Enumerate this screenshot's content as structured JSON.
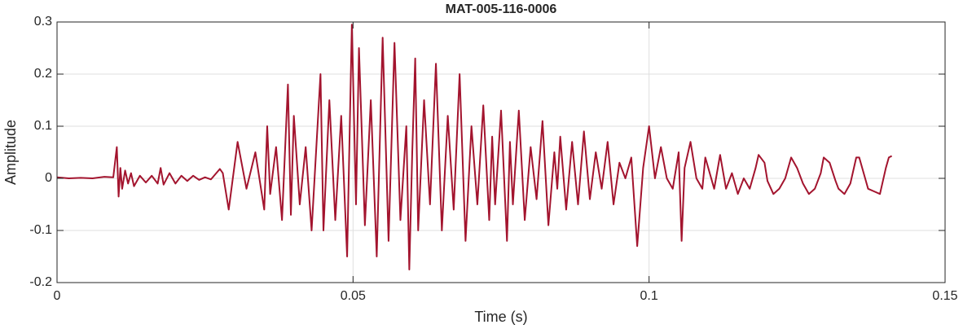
{
  "chart_data": {
    "type": "line",
    "title": "MAT-005-116-0006",
    "x_label": "Time (s)",
    "y_label": "Amplitude",
    "xlim": [
      0,
      0.15
    ],
    "ylim": [
      -0.2,
      0.3
    ],
    "xticks": [
      0,
      0.05,
      0.1,
      0.15
    ],
    "yticks": [
      0.3,
      0.2,
      0.1,
      0,
      -0.1,
      -0.2
    ],
    "grid": true,
    "series": [
      {
        "color": "#a3142e",
        "x": [
          0,
          0.002,
          0.004,
          0.006,
          0.008,
          0.0095,
          0.0101,
          0.0104,
          0.0107,
          0.011,
          0.0115,
          0.012,
          0.0125,
          0.013,
          0.014,
          0.015,
          0.016,
          0.017,
          0.0175,
          0.018,
          0.019,
          0.02,
          0.021,
          0.022,
          0.023,
          0.024,
          0.025,
          0.026,
          0.0275,
          0.028,
          0.029,
          0.0305,
          0.032,
          0.0335,
          0.035,
          0.0355,
          0.036,
          0.037,
          0.038,
          0.039,
          0.0395,
          0.04,
          0.041,
          0.042,
          0.043,
          0.0445,
          0.045,
          0.046,
          0.047,
          0.048,
          0.049,
          0.0498,
          0.0505,
          0.051,
          0.052,
          0.053,
          0.054,
          0.055,
          0.056,
          0.057,
          0.058,
          0.059,
          0.0595,
          0.06,
          0.0605,
          0.061,
          0.062,
          0.063,
          0.064,
          0.065,
          0.066,
          0.067,
          0.068,
          0.069,
          0.07,
          0.071,
          0.072,
          0.073,
          0.0735,
          0.074,
          0.075,
          0.076,
          0.0765,
          0.077,
          0.078,
          0.079,
          0.08,
          0.081,
          0.082,
          0.083,
          0.084,
          0.0845,
          0.085,
          0.086,
          0.087,
          0.088,
          0.089,
          0.09,
          0.091,
          0.092,
          0.093,
          0.094,
          0.095,
          0.096,
          0.097,
          0.098,
          0.099,
          0.1,
          0.101,
          0.102,
          0.103,
          0.104,
          0.105,
          0.1055,
          0.106,
          0.107,
          0.108,
          0.109,
          0.1095,
          0.11,
          0.111,
          0.112,
          0.113,
          0.114,
          0.115,
          0.116,
          0.117,
          0.118,
          0.1185,
          0.1195,
          0.12,
          0.121,
          0.122,
          0.123,
          0.124,
          0.125,
          0.126,
          0.127,
          0.128,
          0.129,
          0.1295,
          0.1305,
          0.1315,
          0.132,
          0.133,
          0.134,
          0.135,
          0.1355,
          0.1365,
          0.137,
          0.138,
          0.139,
          0.14,
          0.1405,
          0.141
        ],
        "values": [
          0.002,
          0,
          0.001,
          0,
          0.003,
          0.002,
          0.06,
          -0.035,
          0.02,
          -0.02,
          0.015,
          -0.01,
          0.01,
          -0.015,
          0.005,
          -0.008,
          0.005,
          -0.01,
          0.02,
          -0.012,
          0.01,
          -0.01,
          0.005,
          -0.005,
          0.005,
          -0.003,
          0.002,
          -0.002,
          0.018,
          0.01,
          -0.06,
          0.07,
          -0.02,
          0.05,
          -0.06,
          0.1,
          -0.03,
          0.06,
          -0.08,
          0.18,
          -0.07,
          0.12,
          -0.05,
          0.06,
          -0.1,
          0.2,
          -0.1,
          0.15,
          -0.08,
          0.12,
          -0.15,
          0.295,
          -0.05,
          0.25,
          -0.09,
          0.15,
          -0.15,
          0.27,
          -0.12,
          0.26,
          -0.08,
          0.1,
          -0.175,
          0.05,
          0.23,
          -0.1,
          0.15,
          -0.05,
          0.22,
          -0.1,
          0.12,
          -0.06,
          0.2,
          -0.12,
          0.1,
          -0.05,
          0.14,
          -0.08,
          0.08,
          -0.05,
          0.13,
          -0.12,
          0.07,
          -0.05,
          0.13,
          -0.08,
          0.06,
          -0.04,
          0.11,
          -0.09,
          0.05,
          -0.02,
          0.08,
          -0.06,
          0.07,
          -0.05,
          0.09,
          -0.04,
          0.05,
          -0.02,
          0.07,
          -0.05,
          0.03,
          0,
          0.04,
          -0.13,
          0.02,
          0.1,
          0,
          0.06,
          0,
          -0.02,
          0.05,
          -0.12,
          0.02,
          0.07,
          0,
          -0.02,
          0.04,
          0.02,
          -0.02,
          0.045,
          -0.02,
          0.01,
          -0.03,
          0,
          -0.02,
          0.02,
          0.045,
          0.03,
          -0.005,
          -0.03,
          -0.02,
          0,
          0.04,
          0.02,
          -0.01,
          -0.03,
          -0.02,
          0.01,
          0.04,
          0.03,
          -0.005,
          -0.02,
          -0.03,
          -0.01,
          0.04,
          0.04,
          0,
          -0.02,
          -0.025,
          -0.03,
          0.02,
          0.04,
          0.043
        ]
      }
    ]
  }
}
